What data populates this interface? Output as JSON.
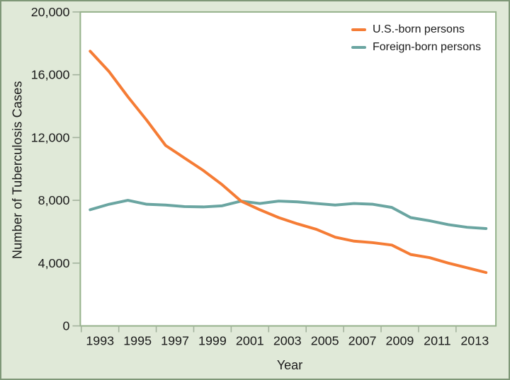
{
  "figure": {
    "kind": "statistical line chart",
    "background_color": "#e0e9d8",
    "plot_background": "#ffffff",
    "plot_border_color": "#94b18a",
    "tick_color": "#a3b29d",
    "text_color": "#1a1a1a"
  },
  "chart_data": {
    "type": "line",
    "title": "",
    "xlabel": "Year",
    "ylabel": "Number of Tuberculosis Cases",
    "x": [
      1993,
      1994,
      1995,
      1996,
      1997,
      1998,
      1999,
      2000,
      2001,
      2002,
      2003,
      2004,
      2005,
      2006,
      2007,
      2008,
      2009,
      2010,
      2011,
      2012,
      2013,
      2014
    ],
    "series": [
      {
        "name": "U.S.-born persons",
        "color": "#f57c35",
        "values": [
          17500,
          16200,
          14600,
          13100,
          11500,
          10700,
          9900,
          9000,
          7950,
          7400,
          6900,
          6500,
          6150,
          5650,
          5400,
          5300,
          5150,
          4550,
          4350,
          4000,
          3700,
          3400
        ]
      },
      {
        "name": "Foreign-born persons",
        "color": "#6aa5a1",
        "values": [
          7400,
          7750,
          8000,
          7750,
          7700,
          7600,
          7580,
          7650,
          7950,
          7800,
          7950,
          7900,
          7800,
          7700,
          7800,
          7750,
          7550,
          6900,
          6700,
          6450,
          6280,
          6200
        ]
      }
    ],
    "ylim": [
      0,
      20000
    ],
    "y_ticks": [
      0,
      4000,
      8000,
      12000,
      16000,
      20000
    ],
    "y_tick_labels": [
      "0",
      "4,000",
      "8,000",
      "12,000",
      "16,000",
      "20,000"
    ],
    "x_tick_marks": [
      1992,
      1994,
      1996,
      1998,
      2000,
      2002,
      2004,
      2006,
      2008,
      2010,
      2012
    ],
    "x_tick_labels": [
      "1993",
      "1995",
      "1997",
      "1999",
      "2001",
      "2003",
      "2005",
      "2007",
      "2009",
      "2011",
      "2013"
    ],
    "x_tick_label_years": [
      1993,
      1995,
      1997,
      1999,
      2001,
      2003,
      2005,
      2007,
      2009,
      2011,
      2013
    ],
    "grid": false,
    "legend_position": "top-right-inside"
  }
}
